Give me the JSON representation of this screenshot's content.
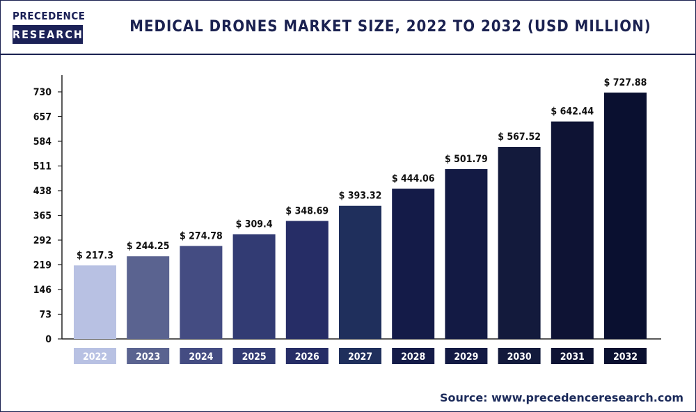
{
  "logo": {
    "line1": "PRECEDENCE",
    "line2": "RESEARCH"
  },
  "source": "Source: www.precedenceresearch.com",
  "chart_data": {
    "type": "bar",
    "title": "MEDICAL DRONES MARKET SIZE, 2022 TO 2032 (USD MILLION)",
    "categories": [
      "2022",
      "2023",
      "2024",
      "2025",
      "2026",
      "2027",
      "2028",
      "2029",
      "2030",
      "2031",
      "2032"
    ],
    "values": [
      217.3,
      244.25,
      274.78,
      309.4,
      348.69,
      393.32,
      444.06,
      501.79,
      567.52,
      642.44,
      727.88
    ],
    "data_labels": [
      "$ 217.3",
      "$ 244.25",
      "$ 274.78",
      "$ 309.4",
      "$ 348.69",
      "$ 393.32",
      "$ 444.06",
      "$ 501.79",
      "$ 567.52",
      "$ 642.44",
      "$ 727.88"
    ],
    "yticks": [
      0,
      73,
      146,
      219,
      292,
      365,
      438,
      511,
      584,
      657,
      730
    ],
    "ylim": [
      0,
      730
    ],
    "grid": false,
    "legend": "none",
    "colors": [
      "#b8c1e3",
      "#5a6390",
      "#444c82",
      "#323b73",
      "#262d66",
      "#1f2f5c",
      "#141b48",
      "#131a44",
      "#131a3c",
      "#0e1334",
      "#0a1030"
    ]
  }
}
